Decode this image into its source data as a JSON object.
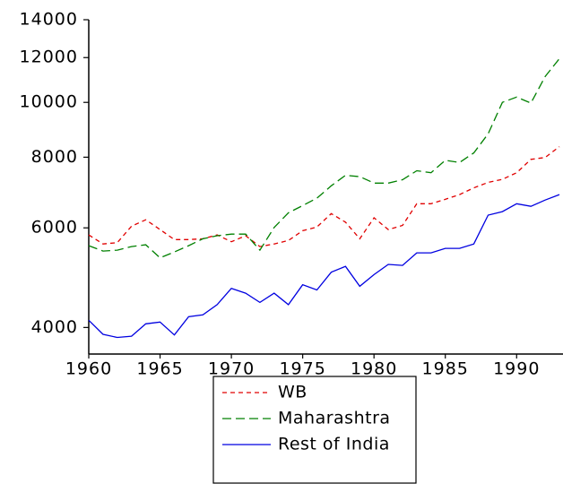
{
  "chart_data": {
    "type": "line",
    "log_scale_y": true,
    "x": [
      1960,
      1961,
      1962,
      1963,
      1964,
      1965,
      1966,
      1967,
      1968,
      1969,
      1970,
      1971,
      1972,
      1973,
      1974,
      1975,
      1976,
      1977,
      1978,
      1979,
      1980,
      1981,
      1982,
      1983,
      1984,
      1985,
      1986,
      1987,
      1988,
      1989,
      1990,
      1991,
      1992,
      1993
    ],
    "xlim": [
      1960,
      1993
    ],
    "xticks": [
      1960,
      1965,
      1970,
      1975,
      1980,
      1985,
      1990
    ],
    "ylim": [
      3590,
      14000
    ],
    "yticks": [
      4000,
      6000,
      8000,
      10000,
      12000,
      14000
    ],
    "series": [
      {
        "name": "WB",
        "color": "#e00000",
        "line_style": "dashed",
        "values": [
          5830,
          5620,
          5650,
          6040,
          6200,
          5960,
          5720,
          5720,
          5740,
          5830,
          5670,
          5810,
          5560,
          5620,
          5700,
          5930,
          6020,
          6360,
          6140,
          5740,
          6250,
          5960,
          6060,
          6620,
          6620,
          6740,
          6870,
          7060,
          7220,
          7310,
          7510,
          7930,
          7990,
          8350
        ]
      },
      {
        "name": "Maharashtra",
        "color": "#008000",
        "line_style": "long-dashed",
        "values": [
          5580,
          5460,
          5480,
          5560,
          5600,
          5310,
          5440,
          5580,
          5740,
          5810,
          5850,
          5850,
          5480,
          6010,
          6380,
          6570,
          6770,
          7120,
          7430,
          7390,
          7200,
          7200,
          7300,
          7570,
          7510,
          7900,
          7830,
          8140,
          8800,
          10000,
          10220,
          9970,
          11110,
          11950
        ]
      },
      {
        "name": "Rest of India",
        "color": "#0000e0",
        "line_style": "solid",
        "values": [
          4120,
          3890,
          3840,
          3860,
          4060,
          4090,
          3880,
          4180,
          4210,
          4390,
          4690,
          4600,
          4430,
          4600,
          4390,
          4760,
          4660,
          5010,
          5130,
          4730,
          4960,
          5170,
          5150,
          5420,
          5420,
          5520,
          5520,
          5620,
          6320,
          6410,
          6620,
          6550,
          6720,
          6870
        ]
      }
    ],
    "legend_position": "bottom"
  }
}
